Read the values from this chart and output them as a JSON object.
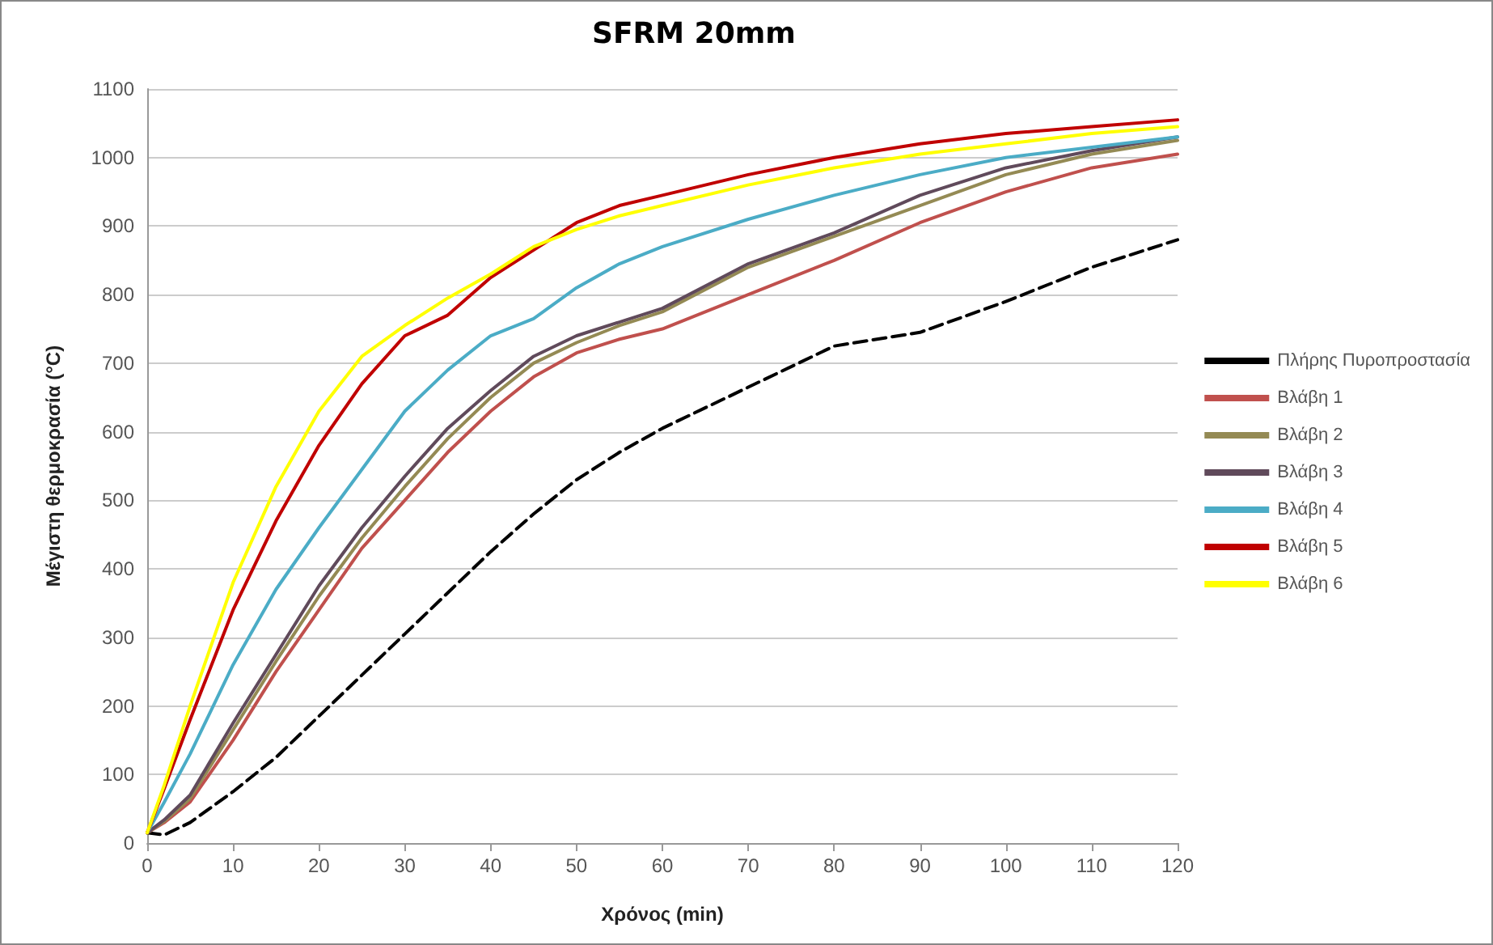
{
  "chart_data": {
    "type": "line",
    "title": "SFRM 20mm",
    "xlabel": "Χρόνος (min)",
    "ylabel": "Μέγιστη θερμοκρασία (°C)",
    "x": [
      0,
      2,
      5,
      10,
      15,
      20,
      25,
      30,
      35,
      40,
      45,
      50,
      55,
      60,
      70,
      80,
      90,
      100,
      110,
      120
    ],
    "xlim": [
      0,
      120
    ],
    "xticks": [
      0,
      10,
      20,
      30,
      40,
      50,
      60,
      70,
      80,
      90,
      100,
      110,
      120
    ],
    "ylim": [
      0,
      1100
    ],
    "yticks": [
      0,
      100,
      200,
      300,
      400,
      500,
      600,
      700,
      800,
      900,
      1000,
      1100
    ],
    "grid": "y",
    "legend": "right",
    "marker": "none",
    "series": [
      {
        "name": "Πλήρης Πυροπροστασία",
        "color": "#000000",
        "line_style": "dashed",
        "values": [
          15,
          12,
          30,
          75,
          125,
          185,
          245,
          305,
          365,
          425,
          480,
          530,
          570,
          605,
          665,
          725,
          745,
          790,
          840,
          880
        ]
      },
      {
        "name": "Βλάβη 1",
        "color": "#c0504d",
        "values": [
          15,
          30,
          60,
          150,
          250,
          340,
          430,
          500,
          570,
          630,
          680,
          715,
          735,
          750,
          800,
          850,
          905,
          950,
          985,
          1005
        ]
      },
      {
        "name": "Βλάβη 2",
        "color": "#948a54",
        "values": [
          15,
          32,
          65,
          165,
          265,
          360,
          445,
          520,
          590,
          650,
          700,
          730,
          755,
          775,
          840,
          885,
          930,
          975,
          1005,
          1025
        ]
      },
      {
        "name": "Βλάβη 3",
        "color": "#604a5b",
        "values": [
          15,
          34,
          70,
          175,
          275,
          375,
          460,
          535,
          605,
          660,
          710,
          740,
          760,
          780,
          845,
          890,
          945,
          985,
          1010,
          1030
        ]
      },
      {
        "name": "Βλάβη 4",
        "color": "#4bacc6",
        "values": [
          15,
          60,
          130,
          260,
          370,
          460,
          545,
          630,
          690,
          740,
          765,
          810,
          845,
          870,
          910,
          945,
          975,
          1000,
          1015,
          1030
        ]
      },
      {
        "name": "Βλάβη 5",
        "color": "#c00000",
        "values": [
          15,
          80,
          180,
          340,
          470,
          580,
          670,
          740,
          770,
          825,
          865,
          905,
          930,
          945,
          975,
          1000,
          1020,
          1035,
          1045,
          1055
        ]
      },
      {
        "name": "Βλάβη 6",
        "color": "#ffff00",
        "values": [
          15,
          85,
          200,
          380,
          520,
          630,
          710,
          755,
          795,
          830,
          870,
          895,
          915,
          930,
          960,
          985,
          1005,
          1020,
          1035,
          1045
        ]
      }
    ]
  }
}
